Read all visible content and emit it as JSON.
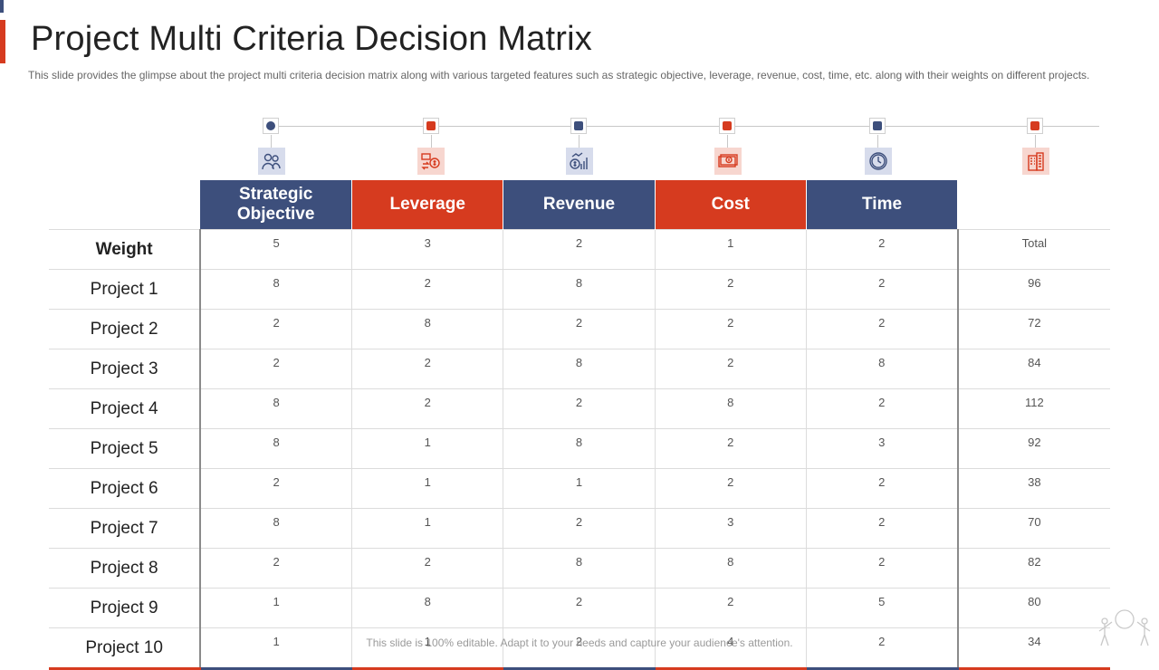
{
  "slide": {
    "title": "Project Multi Criteria Decision Matrix",
    "subtitle": "This slide provides the glimpse about the project multi criteria decision matrix along with various targeted features such as strategic objective, leverage, revenue, cost, time, etc. along with their weights on different projects.",
    "footer": "This slide is 100% editable. Adapt it to your needs and capture your audience's attention."
  },
  "colors": {
    "blue": "#3d4f7c",
    "red": "#d63b1f"
  },
  "timeline": {
    "markers": [
      {
        "shape": "dot",
        "color": "blue",
        "icon": "people-icon"
      },
      {
        "shape": "square",
        "color": "red",
        "icon": "money-exchange-icon"
      },
      {
        "shape": "square",
        "color": "blue",
        "icon": "revenue-chart-icon"
      },
      {
        "shape": "square",
        "color": "red",
        "icon": "cash-icon"
      },
      {
        "shape": "square",
        "color": "blue",
        "icon": "clock-icon"
      },
      {
        "shape": "square",
        "color": "red",
        "icon": "building-icon"
      }
    ]
  },
  "matrix": {
    "criteria": [
      "Strategic Objective",
      "Leverage",
      "Revenue",
      "Cost",
      "Time"
    ],
    "weight_label": "Weight",
    "weights": [
      "5",
      "3",
      "2",
      "1",
      "2"
    ],
    "total_label": "Total",
    "rows": [
      {
        "label": "Project 1",
        "values": [
          "8",
          "2",
          "8",
          "2",
          "2"
        ],
        "total": "96"
      },
      {
        "label": "Project 2",
        "values": [
          "2",
          "8",
          "2",
          "2",
          "2"
        ],
        "total": "72"
      },
      {
        "label": "Project 3",
        "values": [
          "2",
          "2",
          "8",
          "2",
          "8"
        ],
        "total": "84"
      },
      {
        "label": "Project 4",
        "values": [
          "8",
          "2",
          "2",
          "8",
          "2"
        ],
        "total": "112"
      },
      {
        "label": "Project 5",
        "values": [
          "8",
          "1",
          "8",
          "2",
          "3"
        ],
        "total": "92"
      },
      {
        "label": "Project 6",
        "values": [
          "2",
          "1",
          "1",
          "2",
          "2"
        ],
        "total": "38"
      },
      {
        "label": "Project 7",
        "values": [
          "8",
          "1",
          "2",
          "3",
          "2"
        ],
        "total": "70"
      },
      {
        "label": "Project 8",
        "values": [
          "2",
          "2",
          "8",
          "8",
          "2"
        ],
        "total": "82"
      },
      {
        "label": "Project 9",
        "values": [
          "1",
          "8",
          "2",
          "2",
          "5"
        ],
        "total": "80"
      },
      {
        "label": "Project 10",
        "values": [
          "1",
          "1",
          "2",
          "4",
          "2"
        ],
        "total": "34"
      }
    ]
  }
}
